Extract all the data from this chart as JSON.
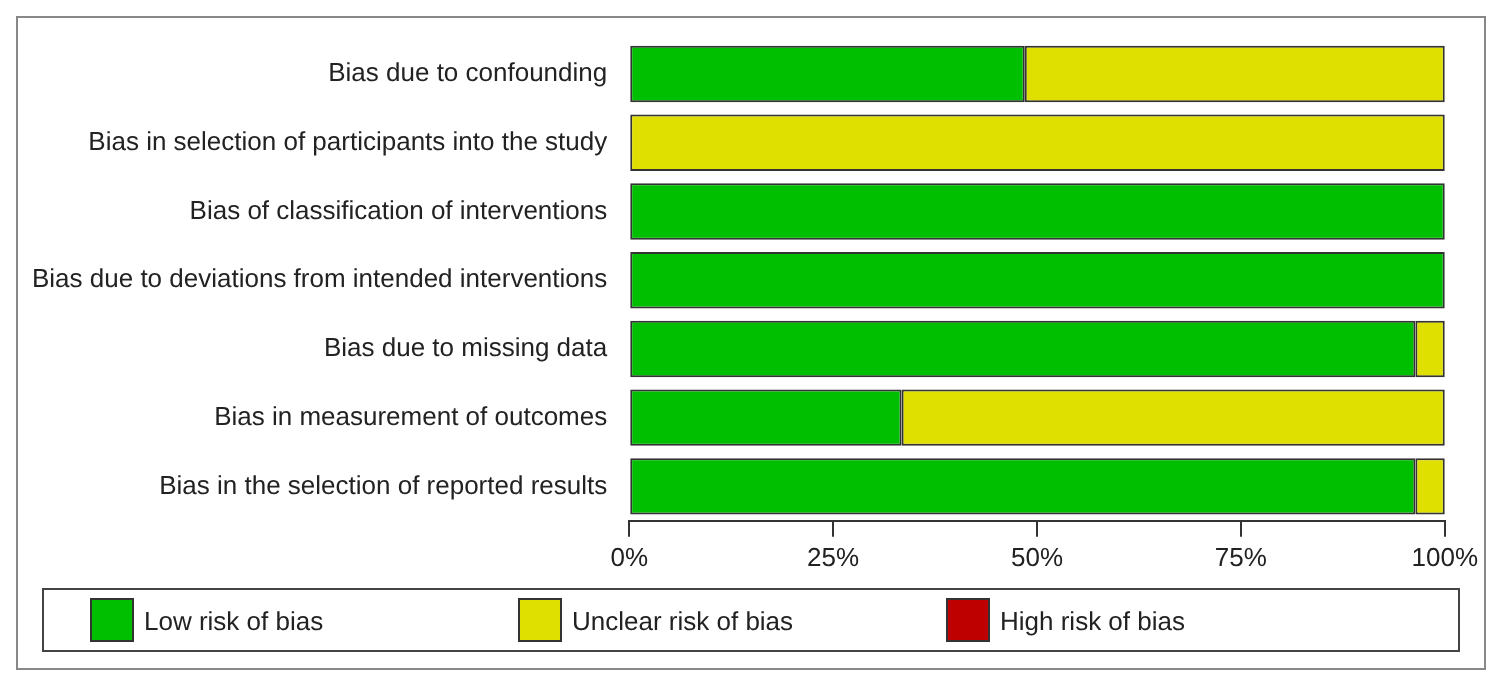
{
  "chart_data": {
    "type": "bar",
    "orientation": "horizontal",
    "stacked": true,
    "categories": [
      "Bias due to confounding",
      "Bias in selection of participants into the study",
      "Bias of classification of interventions",
      "Bias due to deviations from intended interventions",
      "Bias due to missing data",
      "Bias in measurement of outcomes",
      "Bias in the selection of reported results"
    ],
    "series": [
      {
        "name": "Low risk of bias",
        "color": "#00bf00",
        "values": [
          48.5,
          0,
          100,
          100,
          96.4,
          33.4,
          96.4
        ]
      },
      {
        "name": "Unclear risk of bias",
        "color": "#dfdf00",
        "values": [
          51.5,
          100,
          0,
          0,
          3.6,
          66.6,
          3.6
        ]
      },
      {
        "name": "High risk of bias",
        "color": "#bf0000",
        "values": [
          0,
          0,
          0,
          0,
          0,
          0,
          0
        ]
      }
    ],
    "xlim": [
      0,
      100
    ],
    "xticks": [
      {
        "value": 0,
        "label": "0%"
      },
      {
        "value": 25,
        "label": "25%"
      },
      {
        "value": 50,
        "label": "50%"
      },
      {
        "value": 75,
        "label": "75%"
      },
      {
        "value": 100,
        "label": "100%"
      }
    ],
    "grid": false,
    "legend": "bottom"
  }
}
